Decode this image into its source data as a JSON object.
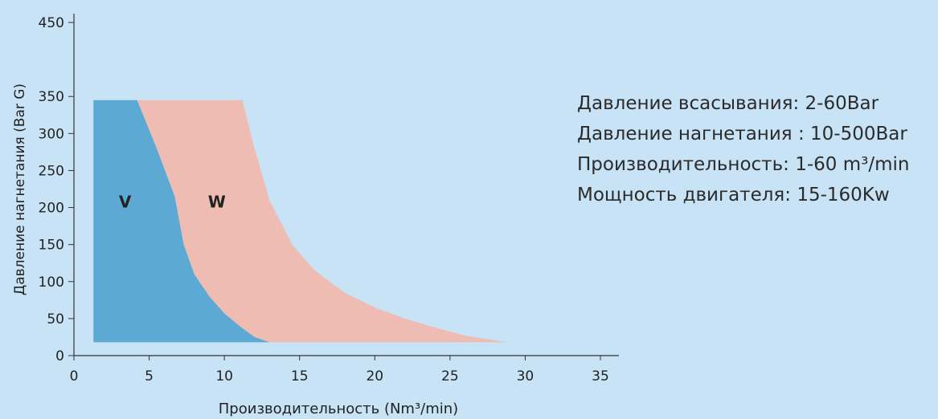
{
  "chart_data": {
    "type": "area",
    "xlabel": "Производительность (Nm³/min)",
    "ylabel": "Давление нагнетания (Bar G)",
    "xlim": [
      0,
      35
    ],
    "ylim": [
      0,
      450
    ],
    "xticks": [
      0,
      5,
      10,
      15,
      20,
      25,
      30,
      35
    ],
    "yticks": [
      0,
      50,
      100,
      150,
      200,
      250,
      300,
      350,
      450
    ],
    "grid": false,
    "regions": [
      {
        "name": "V",
        "color": "#5caad3",
        "label_at": [
          3.4,
          200
        ],
        "points": [
          [
            1.3,
            345
          ],
          [
            4.2,
            345
          ],
          [
            5.5,
            280
          ],
          [
            6.7,
            215
          ],
          [
            7.3,
            150
          ],
          [
            8,
            110
          ],
          [
            9,
            80
          ],
          [
            10,
            57
          ],
          [
            11,
            40
          ],
          [
            12,
            25
          ],
          [
            13,
            18
          ],
          [
            1.3,
            18
          ]
        ]
      },
      {
        "name": "W",
        "color": "#eebcb2",
        "label_at": [
          9.5,
          200
        ],
        "points": [
          [
            4.2,
            345
          ],
          [
            11.2,
            345
          ],
          [
            12,
            280
          ],
          [
            13,
            210
          ],
          [
            14.5,
            150
          ],
          [
            16,
            115
          ],
          [
            18,
            85
          ],
          [
            20,
            65
          ],
          [
            22,
            50
          ],
          [
            24,
            38
          ],
          [
            26,
            27
          ],
          [
            28.8,
            18
          ],
          [
            13,
            18
          ],
          [
            12,
            25
          ],
          [
            11,
            40
          ],
          [
            10,
            57
          ],
          [
            9,
            80
          ],
          [
            8,
            110
          ],
          [
            7.3,
            150
          ],
          [
            6.7,
            215
          ],
          [
            5.5,
            280
          ]
        ]
      }
    ]
  },
  "specs": [
    "Давление всасывания: 2-60Bar",
    "Давление нагнетания : 10-500Bar",
    "Производительность: 1-60 m³/min",
    "Мощность двигателя: 15-160Kw"
  ]
}
